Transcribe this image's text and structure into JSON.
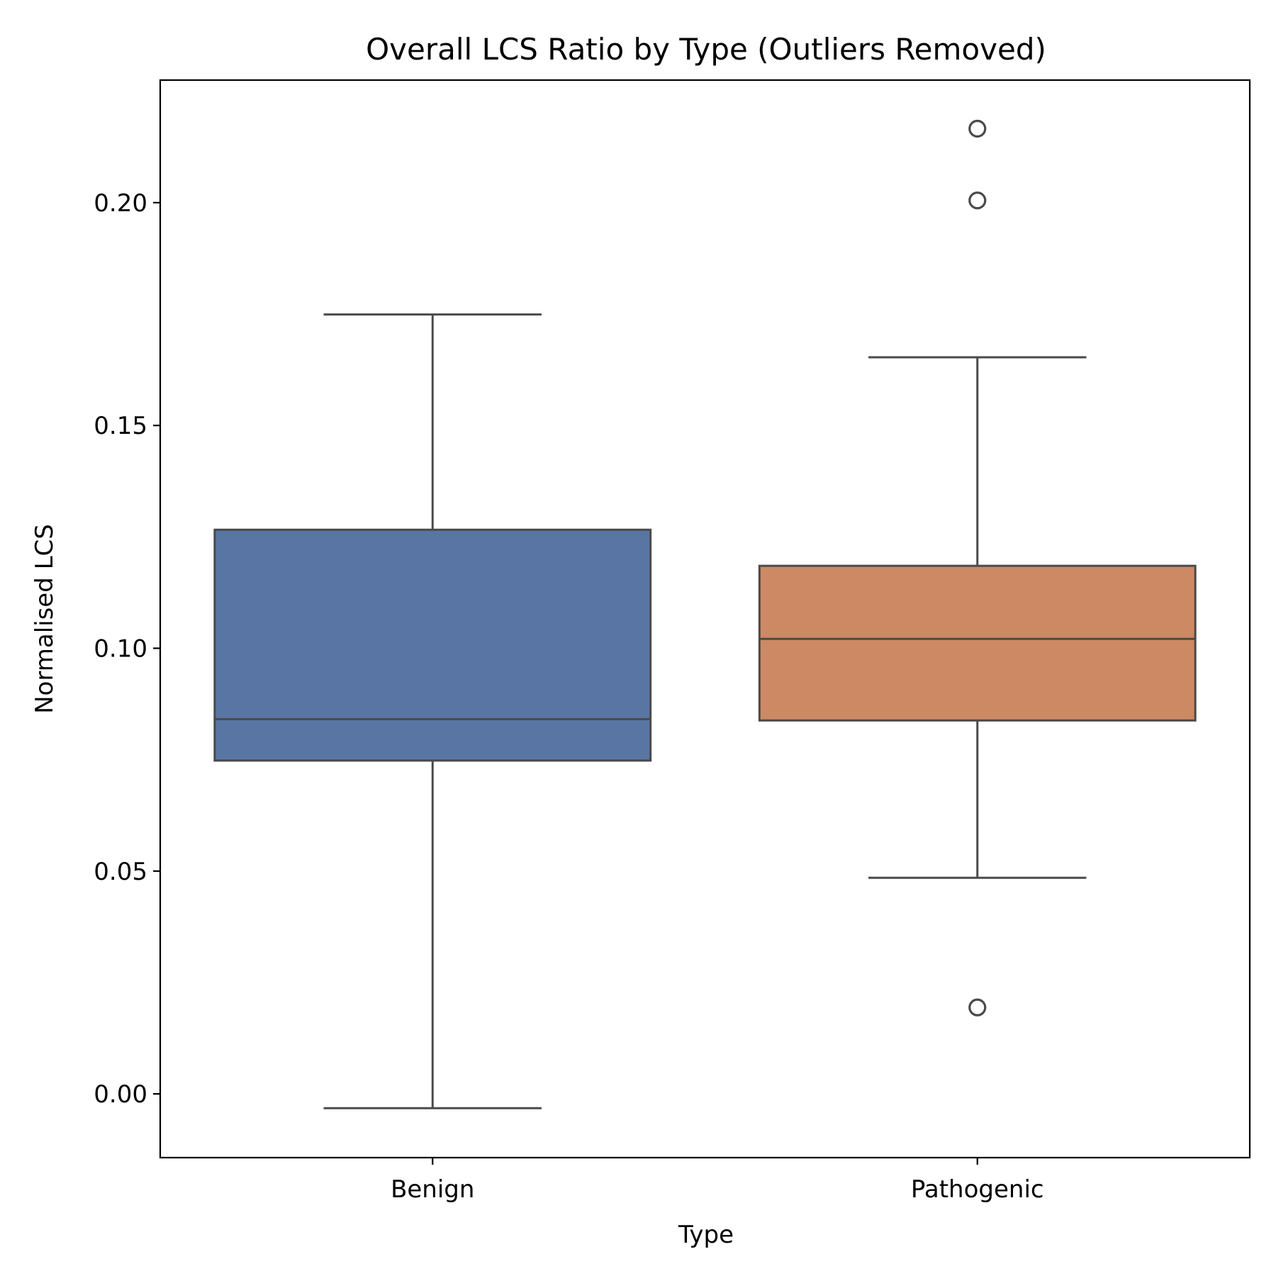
{
  "chart_data": {
    "type": "box",
    "title": "Overall LCS Ratio by Type (Outliers Removed)",
    "xlabel": "Type",
    "ylabel": "Normalised LCS",
    "categories": [
      "Benign",
      "Pathogenic"
    ],
    "ylim": [
      -0.0143,
      0.2275
    ],
    "yticks": [
      0.0,
      0.05,
      0.1,
      0.15,
      0.2
    ],
    "ytick_labels": [
      "0.00",
      "0.05",
      "0.10",
      "0.15",
      "0.20"
    ],
    "grid": false,
    "boxes": [
      {
        "category": "Benign",
        "color": "#5975a4",
        "whisker_low": -0.0032,
        "q1": 0.0748,
        "median": 0.0841,
        "q3": 0.1266,
        "whisker_high": 0.1749,
        "outliers": []
      },
      {
        "category": "Pathogenic",
        "color": "#cc8963",
        "whisker_low": 0.0485,
        "q1": 0.0838,
        "median": 0.1021,
        "q3": 0.1185,
        "whisker_high": 0.1653,
        "outliers": [
          0.0194,
          0.2005,
          0.2166
        ]
      }
    ],
    "line_color": "#4a4a4a"
  }
}
